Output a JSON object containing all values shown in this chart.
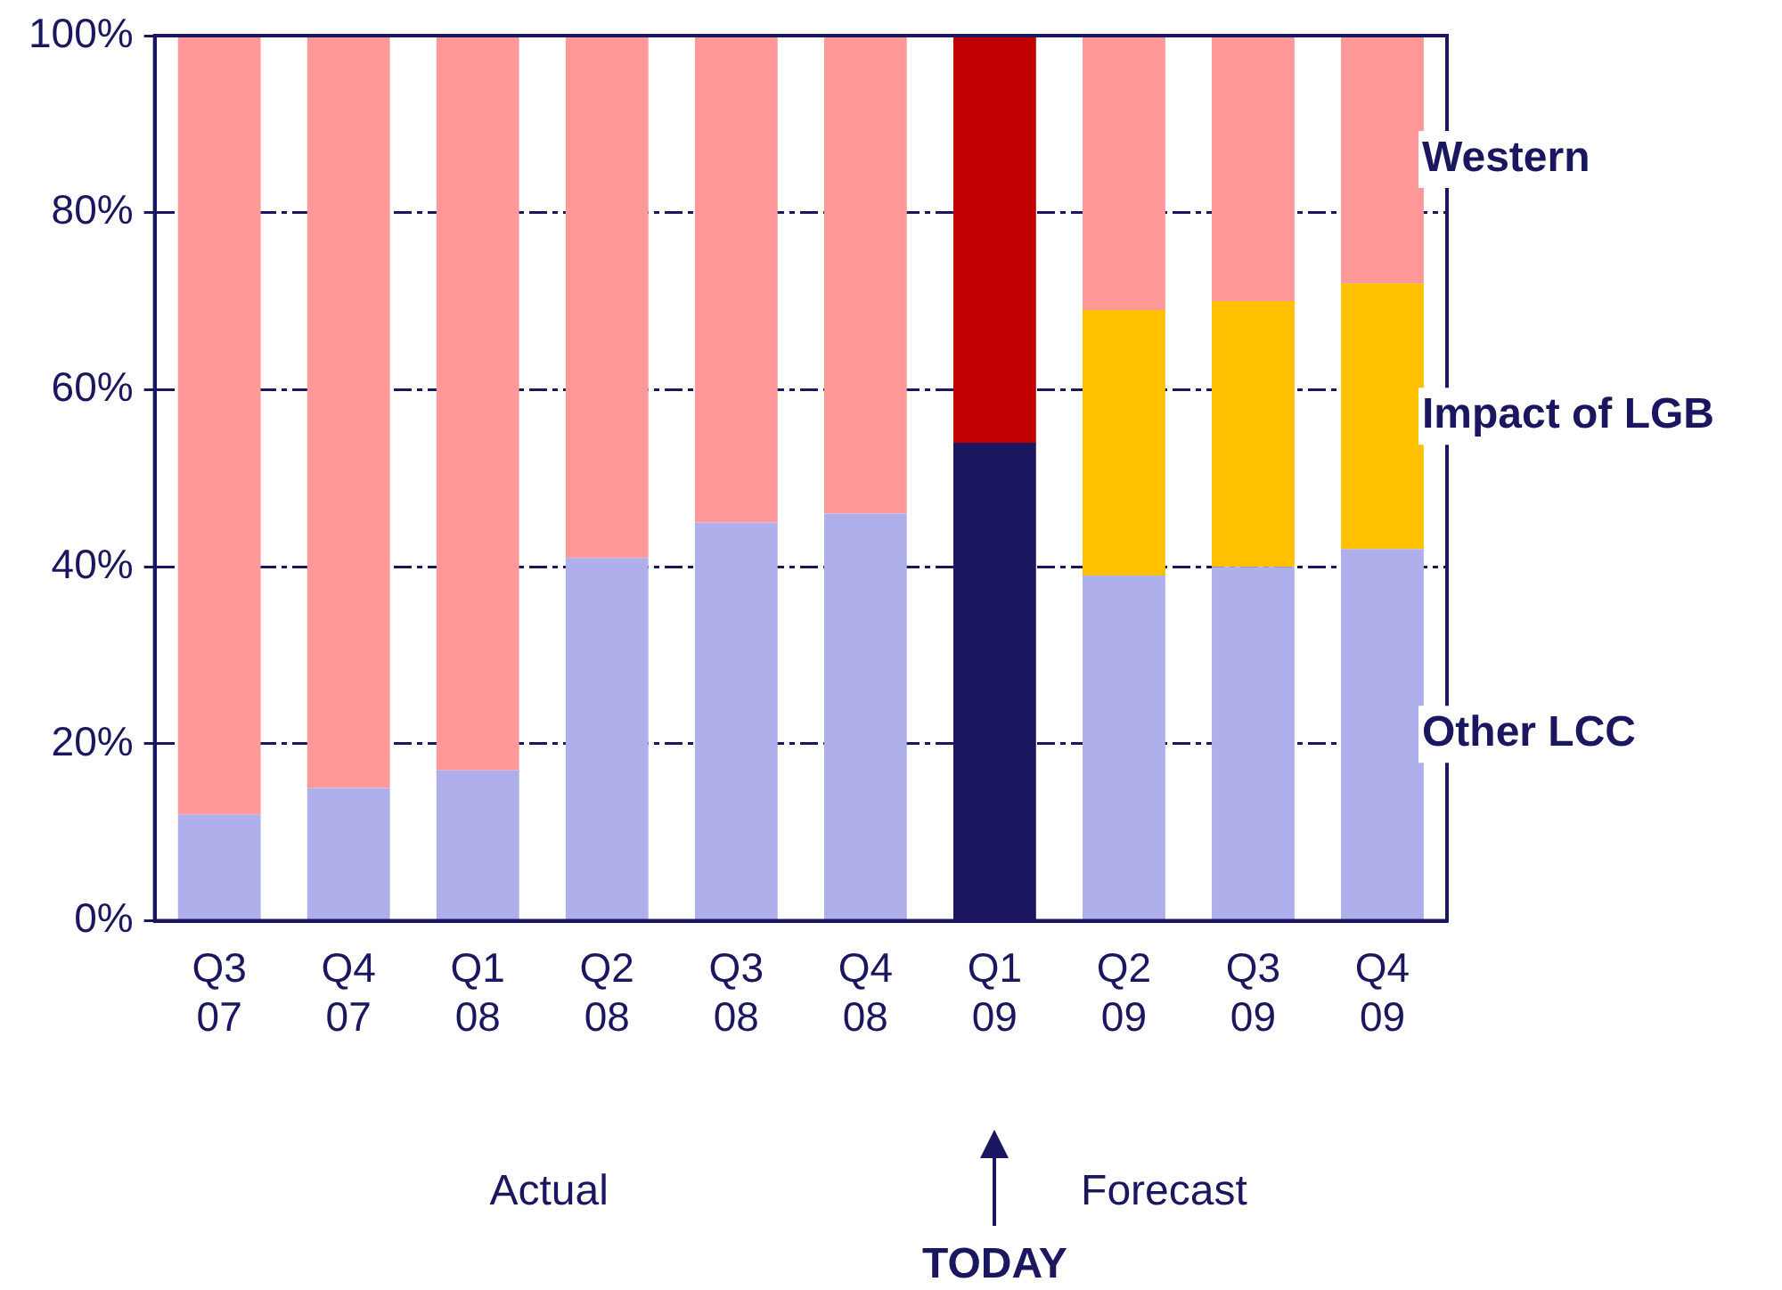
{
  "chart_data": {
    "type": "bar",
    "stacked": true,
    "categories": [
      "Q3 07",
      "Q4 07",
      "Q1 08",
      "Q2 08",
      "Q3 08",
      "Q4 08",
      "Q1 09",
      "Q2 09",
      "Q3 09",
      "Q4 09"
    ],
    "series": [
      {
        "name": "Other LCC",
        "colors": [
          "#afafeb",
          "#afafeb",
          "#afafeb",
          "#afafeb",
          "#afafeb",
          "#afafeb",
          "#1a1760",
          "#afafeb",
          "#afafeb",
          "#afafeb"
        ],
        "values": [
          12,
          15,
          17,
          41,
          45,
          46,
          54,
          39,
          40,
          42
        ]
      },
      {
        "name": "Impact of LGB",
        "color": "#ffc000",
        "values": [
          0,
          0,
          0,
          0,
          0,
          0,
          0,
          30,
          30,
          30
        ]
      },
      {
        "name": "Western",
        "colors": [
          "#ff9999",
          "#ff9999",
          "#ff9999",
          "#ff9999",
          "#ff9999",
          "#ff9999",
          "#c00000",
          "#ff9999",
          "#ff9999",
          "#ff9999"
        ],
        "values": [
          88,
          85,
          83,
          59,
          55,
          54,
          46,
          31,
          30,
          28
        ]
      }
    ],
    "ylim": [
      0,
      100
    ],
    "yticks": [
      {
        "value": 0,
        "label": "0%"
      },
      {
        "value": 20,
        "label": "20%"
      },
      {
        "value": 40,
        "label": "40%"
      },
      {
        "value": 60,
        "label": "60%"
      },
      {
        "value": 80,
        "label": "80%"
      },
      {
        "value": 100,
        "label": "100%"
      }
    ],
    "grid": "y",
    "legend": false,
    "annotations": [
      "Actual",
      "TODAY",
      "Forecast"
    ]
  }
}
